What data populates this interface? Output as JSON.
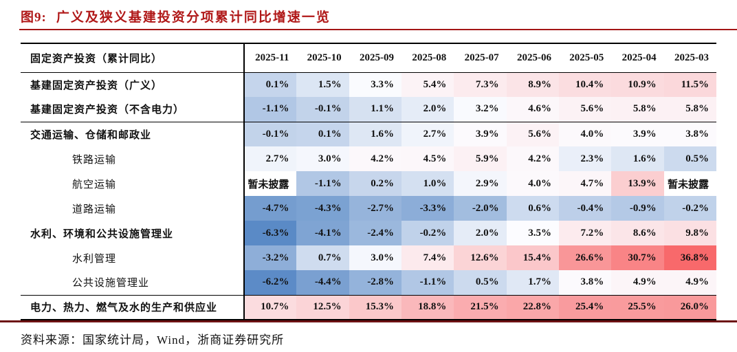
{
  "figure": {
    "label": "图9:",
    "title": "广义及狭义基建投资分项累计同比增速一览"
  },
  "table": {
    "corner_header": "固定资产投资（累计同比）",
    "months": [
      "2025-11",
      "2025-10",
      "2025-09",
      "2025-08",
      "2025-07",
      "2025-06",
      "2025-05",
      "2025-04",
      "2025-03"
    ],
    "na_text": "暂未披露",
    "rows": [
      {
        "label": "基建固定资产投资（广义）",
        "bold": true,
        "indent": false,
        "separator_after": false,
        "values": [
          "0.1%",
          "1.5%",
          "3.3%",
          "5.4%",
          "7.3%",
          "8.9%",
          "10.4%",
          "10.9%",
          "11.5%"
        ]
      },
      {
        "label": "基建固定资产投资（不含电力）",
        "bold": true,
        "indent": false,
        "separator_after": true,
        "values": [
          "-1.1%",
          "-0.1%",
          "1.1%",
          "2.0%",
          "3.2%",
          "4.6%",
          "5.6%",
          "5.8%",
          "5.8%"
        ]
      },
      {
        "label": "交通运输、仓储和邮政业",
        "bold": true,
        "indent": false,
        "separator_after": false,
        "values": [
          "-0.1%",
          "0.1%",
          "1.6%",
          "2.7%",
          "3.9%",
          "5.6%",
          "4.0%",
          "3.9%",
          "3.8%"
        ]
      },
      {
        "label": "铁路运输",
        "bold": false,
        "indent": true,
        "separator_after": false,
        "values": [
          "2.7%",
          "3.0%",
          "4.2%",
          "4.5%",
          "5.9%",
          "4.2%",
          "2.3%",
          "1.6%",
          "0.5%"
        ]
      },
      {
        "label": "航空运输",
        "bold": false,
        "indent": true,
        "separator_after": false,
        "values": [
          "暂未披露",
          "-1.1%",
          "0.2%",
          "1.0%",
          "2.9%",
          "4.0%",
          "4.7%",
          "13.9%",
          "暂未披露"
        ]
      },
      {
        "label": "道路运输",
        "bold": false,
        "indent": true,
        "separator_after": false,
        "values": [
          "-4.7%",
          "-4.3%",
          "-2.7%",
          "-3.3%",
          "-2.0%",
          "0.6%",
          "-0.4%",
          "-0.9%",
          "-0.2%"
        ]
      },
      {
        "label": "水利、环境和公共设施管理业",
        "bold": true,
        "indent": false,
        "separator_after": false,
        "values": [
          "-6.3%",
          "-4.1%",
          "-2.4%",
          "-0.2%",
          "2.0%",
          "3.5%",
          "7.2%",
          "8.6%",
          "9.8%"
        ]
      },
      {
        "label": "水利管理",
        "bold": false,
        "indent": true,
        "separator_after": false,
        "values": [
          "-3.2%",
          "0.7%",
          "3.0%",
          "7.4%",
          "12.6%",
          "15.4%",
          "26.6%",
          "30.7%",
          "36.8%"
        ]
      },
      {
        "label": "公共设施管理业",
        "bold": false,
        "indent": true,
        "separator_after": true,
        "values": [
          "-6.2%",
          "-4.4%",
          "-2.8%",
          "-1.1%",
          "0.5%",
          "1.7%",
          "3.8%",
          "4.9%",
          "4.9%"
        ]
      },
      {
        "label": "电力、热力、燃气及水的生产和供应业",
        "bold": true,
        "indent": false,
        "separator_after": false,
        "values": [
          "10.7%",
          "12.5%",
          "15.3%",
          "18.8%",
          "21.5%",
          "22.8%",
          "25.4%",
          "25.5%",
          "26.0%"
        ]
      }
    ]
  },
  "footer": {
    "source": "资料来源：国家统计局，Wind，浙商证券研究所"
  },
  "colors": {
    "title": "#B01818",
    "title_rule": "#A31515",
    "footer_rule": "#6D1112",
    "scale_min": "#5A8AC6",
    "scale_mid": "#FCFCFF",
    "scale_max": "#F8696B"
  },
  "chart_data": {
    "type": "heatmap",
    "title": "广义及狭义基建投资分项累计同比增速一览",
    "unit": "%",
    "columns": [
      "2025-11",
      "2025-10",
      "2025-09",
      "2025-08",
      "2025-07",
      "2025-06",
      "2025-05",
      "2025-04",
      "2025-03"
    ],
    "series": [
      {
        "name": "基建固定资产投资（广义）",
        "values": [
          0.1,
          1.5,
          3.3,
          5.4,
          7.3,
          8.9,
          10.4,
          10.9,
          11.5
        ]
      },
      {
        "name": "基建固定资产投资（不含电力）",
        "values": [
          -1.1,
          -0.1,
          1.1,
          2.0,
          3.2,
          4.6,
          5.6,
          5.8,
          5.8
        ]
      },
      {
        "name": "交通运输、仓储和邮政业",
        "values": [
          -0.1,
          0.1,
          1.6,
          2.7,
          3.9,
          5.6,
          4.0,
          3.9,
          3.8
        ]
      },
      {
        "name": "铁路运输",
        "values": [
          2.7,
          3.0,
          4.2,
          4.5,
          5.9,
          4.2,
          2.3,
          1.6,
          0.5
        ]
      },
      {
        "name": "航空运输",
        "values": [
          null,
          -1.1,
          0.2,
          1.0,
          2.9,
          4.0,
          4.7,
          13.9,
          null
        ]
      },
      {
        "name": "道路运输",
        "values": [
          -4.7,
          -4.3,
          -2.7,
          -3.3,
          -2.0,
          0.6,
          -0.4,
          -0.9,
          -0.2
        ]
      },
      {
        "name": "水利、环境和公共设施管理业",
        "values": [
          -6.3,
          -4.1,
          -2.4,
          -0.2,
          2.0,
          3.5,
          7.2,
          8.6,
          9.8
        ]
      },
      {
        "name": "水利管理",
        "values": [
          -3.2,
          0.7,
          3.0,
          7.4,
          12.6,
          15.4,
          26.6,
          30.7,
          36.8
        ]
      },
      {
        "name": "公共设施管理业",
        "values": [
          -6.2,
          -4.4,
          -2.8,
          -1.1,
          0.5,
          1.7,
          3.8,
          4.9,
          4.9
        ]
      },
      {
        "name": "电力、热力、燃气及水的生产和供应业",
        "values": [
          10.7,
          12.5,
          15.3,
          18.8,
          21.5,
          22.8,
          25.4,
          25.5,
          26.0
        ]
      }
    ],
    "color_scale": {
      "min_value": -6.3,
      "mid_value": 3.65,
      "max_value": 36.8,
      "min_color": "#5A8AC6",
      "mid_color": "#FCFCFF",
      "max_color": "#F8696B",
      "na_fill": "#FFFFFF"
    },
    "legend": "none",
    "grid": "off"
  }
}
